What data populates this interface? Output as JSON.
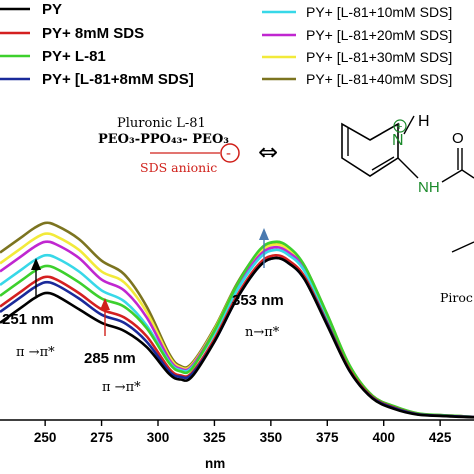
{
  "chart_data": {
    "type": "line",
    "xlabel": "nm",
    "xlim": [
      230,
      440
    ],
    "ylim": [
      0,
      1
    ],
    "x_ticks": [
      "250",
      "275",
      "300",
      "325",
      "350",
      "375",
      "400",
      "425"
    ],
    "series": [
      {
        "name": "PY",
        "color": "#000000",
        "x": [
          230,
          240,
          245,
          250,
          255,
          265,
          275,
          285,
          295,
          305,
          310,
          315,
          325,
          335,
          345,
          352,
          358,
          365,
          375,
          385,
          395,
          405,
          415,
          425,
          440
        ],
        "y": [
          0.36,
          0.42,
          0.45,
          0.47,
          0.46,
          0.41,
          0.36,
          0.33,
          0.27,
          0.17,
          0.15,
          0.16,
          0.29,
          0.45,
          0.57,
          0.6,
          0.58,
          0.52,
          0.35,
          0.18,
          0.08,
          0.04,
          0.02,
          0.015,
          0.01
        ]
      },
      {
        "name": "PY+ 8mM SDS",
        "color": "#d42020",
        "x": [
          230,
          240,
          245,
          250,
          255,
          265,
          275,
          285,
          295,
          305,
          310,
          315,
          325,
          335,
          345,
          352,
          358,
          365,
          375,
          385,
          395,
          405,
          415,
          425,
          440
        ],
        "y": [
          0.42,
          0.48,
          0.51,
          0.53,
          0.52,
          0.47,
          0.41,
          0.38,
          0.31,
          0.19,
          0.165,
          0.175,
          0.3,
          0.46,
          0.58,
          0.61,
          0.59,
          0.53,
          0.36,
          0.185,
          0.085,
          0.045,
          0.022,
          0.016,
          0.011
        ]
      },
      {
        "name": "PY+ L-81",
        "color": "#3dd02d",
        "x": [
          230,
          240,
          245,
          250,
          255,
          265,
          275,
          285,
          295,
          305,
          310,
          315,
          325,
          335,
          345,
          352,
          358,
          365,
          375,
          385,
          395,
          405,
          415,
          425,
          440
        ],
        "y": [
          0.46,
          0.52,
          0.55,
          0.57,
          0.56,
          0.51,
          0.45,
          0.42,
          0.34,
          0.21,
          0.18,
          0.19,
          0.33,
          0.5,
          0.63,
          0.66,
          0.64,
          0.57,
          0.39,
          0.2,
          0.09,
          0.05,
          0.025,
          0.018,
          0.012
        ]
      },
      {
        "name": "PY+ [L-81+8mM SDS]",
        "color": "#1a2a9a",
        "x": [
          230,
          240,
          245,
          250,
          255,
          265,
          275,
          285,
          295,
          305,
          310,
          315,
          325,
          335,
          345,
          352,
          358,
          365,
          375,
          385,
          395,
          405,
          415,
          425,
          440
        ],
        "y": [
          0.4,
          0.46,
          0.49,
          0.51,
          0.5,
          0.45,
          0.39,
          0.36,
          0.29,
          0.18,
          0.16,
          0.17,
          0.29,
          0.45,
          0.57,
          0.6,
          0.58,
          0.52,
          0.355,
          0.18,
          0.082,
          0.043,
          0.021,
          0.016,
          0.011
        ]
      },
      {
        "name": "PY+ [L-81+10mM SDS]",
        "color": "#37d8e8",
        "x": [
          230,
          240,
          245,
          250,
          255,
          265,
          275,
          285,
          295,
          305,
          310,
          315,
          325,
          335,
          345,
          352,
          358,
          365,
          375,
          385,
          395,
          405,
          415,
          425,
          440
        ],
        "y": [
          0.5,
          0.56,
          0.59,
          0.61,
          0.6,
          0.55,
          0.48,
          0.44,
          0.35,
          0.215,
          0.185,
          0.195,
          0.32,
          0.48,
          0.6,
          0.63,
          0.61,
          0.55,
          0.37,
          0.19,
          0.087,
          0.046,
          0.023,
          0.017,
          0.011
        ]
      },
      {
        "name": "PY+ [L-81+20mM SDS]",
        "color": "#c026d0",
        "x": [
          230,
          240,
          245,
          250,
          255,
          265,
          275,
          285,
          295,
          305,
          310,
          315,
          325,
          335,
          345,
          352,
          358,
          365,
          375,
          385,
          395,
          405,
          415,
          425,
          440
        ],
        "y": [
          0.55,
          0.61,
          0.64,
          0.66,
          0.65,
          0.6,
          0.52,
          0.48,
          0.38,
          0.225,
          0.19,
          0.2,
          0.33,
          0.49,
          0.61,
          0.64,
          0.62,
          0.56,
          0.38,
          0.195,
          0.088,
          0.047,
          0.023,
          0.017,
          0.011
        ]
      },
      {
        "name": "PY+ [L-81+30mM SDS]",
        "color": "#f2ea3a",
        "x": [
          230,
          240,
          245,
          250,
          255,
          265,
          275,
          285,
          295,
          305,
          310,
          315,
          325,
          335,
          345,
          352,
          358,
          365,
          375,
          385,
          395,
          405,
          415,
          425,
          440
        ],
        "y": [
          0.58,
          0.64,
          0.67,
          0.69,
          0.68,
          0.63,
          0.55,
          0.51,
          0.4,
          0.235,
          0.195,
          0.205,
          0.335,
          0.5,
          0.62,
          0.65,
          0.63,
          0.565,
          0.385,
          0.197,
          0.089,
          0.048,
          0.024,
          0.017,
          0.011
        ]
      },
      {
        "name": "PY+ [L-81+40mM SDS]",
        "color": "#7c7420",
        "x": [
          230,
          240,
          245,
          250,
          255,
          265,
          275,
          285,
          295,
          305,
          310,
          315,
          325,
          335,
          345,
          352,
          358,
          365,
          375,
          385,
          395,
          405,
          415,
          425,
          440
        ],
        "y": [
          0.62,
          0.68,
          0.71,
          0.73,
          0.72,
          0.67,
          0.59,
          0.54,
          0.42,
          0.245,
          0.2,
          0.21,
          0.34,
          0.505,
          0.625,
          0.655,
          0.635,
          0.57,
          0.39,
          0.2,
          0.09,
          0.049,
          0.024,
          0.018,
          0.012
        ]
      }
    ],
    "annotations": {
      "peak1_label": "251 nm",
      "peak1_transition": "π →π*",
      "peak2_label": "285 nm",
      "peak2_transition": "π →π*",
      "peak3_label": "353 nm",
      "peak3_transition": "n→π*",
      "micelle_top": "Pluronic L-81",
      "micelle_formula": "PEO₃-PPO₄₃- PEO₃",
      "micelle_sds": "SDS anionic",
      "minus_sign": "-",
      "exchange_arrow": "⇔",
      "structure_h": "H",
      "structure_nplus": "N",
      "structure_plus": "+",
      "structure_nh": "NH",
      "structure_o": "O",
      "structure_name": "Piroc"
    }
  }
}
